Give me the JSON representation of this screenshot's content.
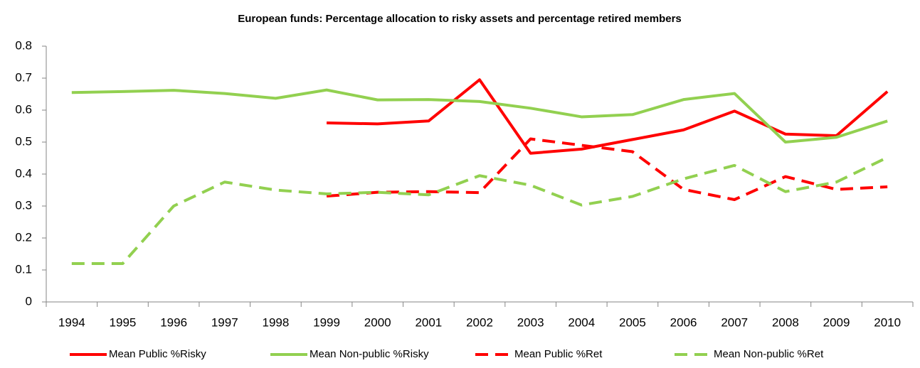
{
  "chart_data": {
    "type": "line",
    "title": "European funds: Percentage allocation to risky assets and percentage retired members",
    "categories": [
      "1994",
      "1995",
      "1996",
      "1997",
      "1998",
      "1999",
      "2000",
      "2001",
      "2002",
      "2003",
      "2004",
      "2005",
      "2006",
      "2007",
      "2008",
      "2009",
      "2010"
    ],
    "series": [
      {
        "name": "Mean Public %Risky",
        "color": "#ff0000",
        "dashed": false,
        "values": [
          null,
          null,
          null,
          null,
          null,
          0.56,
          0.557,
          0.566,
          0.695,
          0.465,
          0.478,
          0.508,
          0.538,
          0.597,
          0.525,
          0.52,
          0.658
        ]
      },
      {
        "name": "Mean Non-public %Risky",
        "color": "#92d050",
        "dashed": false,
        "values": [
          0.655,
          0.658,
          0.662,
          0.652,
          0.637,
          0.663,
          0.632,
          0.633,
          0.627,
          0.606,
          0.579,
          0.586,
          0.633,
          0.652,
          0.5,
          0.515,
          0.566
        ]
      },
      {
        "name": "Mean Public %Ret",
        "color": "#ff0000",
        "dashed": true,
        "values": [
          null,
          null,
          null,
          null,
          null,
          0.331,
          0.343,
          0.345,
          0.342,
          0.51,
          0.49,
          0.47,
          0.352,
          0.32,
          0.392,
          0.352,
          0.36
        ]
      },
      {
        "name": "Mean Non-public %Ret",
        "color": "#92d050",
        "dashed": true,
        "values": [
          0.12,
          0.12,
          0.3,
          0.375,
          0.35,
          0.338,
          0.343,
          0.335,
          0.395,
          0.365,
          0.303,
          0.33,
          0.385,
          0.427,
          0.345,
          0.375,
          0.452
        ]
      }
    ],
    "ylim": [
      0,
      0.8
    ],
    "yticks": [
      0,
      0.1,
      0.2,
      0.3,
      0.4,
      0.5,
      0.6,
      0.7,
      0.8
    ],
    "grid": false,
    "legend": "bottom"
  }
}
